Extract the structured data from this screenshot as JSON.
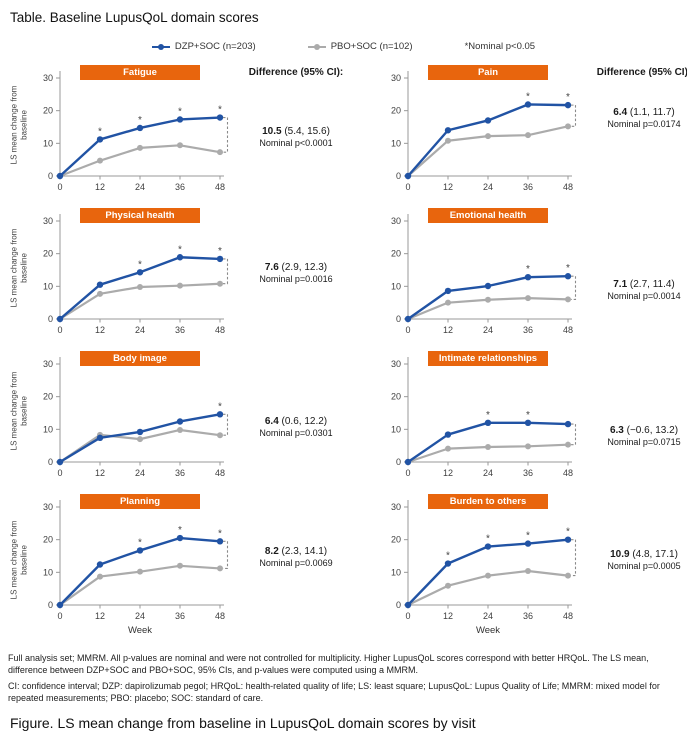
{
  "title": "Table. Baseline LupusQoL domain scores",
  "legend_note": "*Nominal p<0.05",
  "diff_header": "Difference (95% CI):",
  "colors": {
    "dzp": "#2153A4",
    "pbo": "#ABABAB",
    "header_bg": "#E8650D",
    "header_text": "#FFFFFF",
    "axis": "#999999",
    "tick_text": "#404040",
    "bracket": "#8A8A8A"
  },
  "chart_data": {
    "type": "line",
    "x": [
      0,
      12,
      24,
      36,
      48
    ],
    "xlabel": "Week",
    "ylabel": "LS mean change from\nbaseline",
    "ylim": [
      0,
      30
    ],
    "yticks": [
      0,
      10,
      20,
      30
    ],
    "grid": false,
    "legend_position": "top",
    "series": [
      {
        "name": "DZP+SOC (n=203)",
        "color_key": "dzp"
      },
      {
        "name": "PBO+SOC (n=102)",
        "color_key": "pbo"
      }
    ],
    "panels": [
      {
        "title": "Fatigue",
        "dzp": [
          0,
          11.2,
          14.7,
          17.3,
          17.9
        ],
        "pbo": [
          0,
          4.7,
          8.6,
          9.4,
          7.3
        ],
        "asterisk_weeks": [
          12,
          24,
          36,
          48
        ],
        "difference": "10.5",
        "ci": "(5.4, 15.6)",
        "p": "Nominal p<0.0001",
        "ylabel_shown": true,
        "xlabel_shown": false,
        "diff_header_shown": true
      },
      {
        "title": "Pain",
        "dzp": [
          0,
          14.0,
          17.0,
          21.9,
          21.7
        ],
        "pbo": [
          0,
          10.8,
          12.2,
          12.5,
          15.2
        ],
        "asterisk_weeks": [
          36,
          48
        ],
        "difference": "6.4",
        "ci": "(1.1, 11.7)",
        "p": "Nominal p=0.0174",
        "ylabel_shown": false,
        "xlabel_shown": false,
        "diff_header_shown": true
      },
      {
        "title": "Physical health",
        "dzp": [
          0,
          10.5,
          14.3,
          18.9,
          18.4
        ],
        "pbo": [
          0,
          7.7,
          9.8,
          10.2,
          10.8
        ],
        "asterisk_weeks": [
          24,
          36,
          48
        ],
        "difference": "7.6",
        "ci": "(2.9, 12.3)",
        "p": "Nominal p=0.0016",
        "ylabel_shown": true,
        "xlabel_shown": false,
        "diff_header_shown": false
      },
      {
        "title": "Emotional health",
        "dzp": [
          0,
          8.6,
          10.1,
          12.8,
          13.1
        ],
        "pbo": [
          0,
          5.0,
          5.9,
          6.4,
          6.0
        ],
        "asterisk_weeks": [
          36,
          48
        ],
        "difference": "7.1",
        "ci": "(2.7, 11.4)",
        "p": "Nominal p=0.0014",
        "ylabel_shown": false,
        "xlabel_shown": false,
        "diff_header_shown": false
      },
      {
        "title": "Body image",
        "dzp": [
          0,
          7.4,
          9.2,
          12.4,
          14.6
        ],
        "pbo": [
          0,
          8.3,
          7.0,
          9.8,
          8.2
        ],
        "asterisk_weeks": [
          48
        ],
        "difference": "6.4",
        "ci": "(0.6, 12.2)",
        "p": "Nominal p=0.0301",
        "ylabel_shown": true,
        "xlabel_shown": false,
        "diff_header_shown": false
      },
      {
        "title": "Intimate relationships",
        "dzp": [
          0,
          8.4,
          12.0,
          12.0,
          11.6
        ],
        "pbo": [
          0,
          4.1,
          4.6,
          4.8,
          5.3
        ],
        "asterisk_weeks": [
          24,
          36
        ],
        "difference": "6.3",
        "ci": "(−0.6, 13.2)",
        "p": "Nominal p=0.0715",
        "ylabel_shown": false,
        "xlabel_shown": false,
        "diff_header_shown": false
      },
      {
        "title": "Planning",
        "dzp": [
          0,
          12.4,
          16.7,
          20.5,
          19.5
        ],
        "pbo": [
          0,
          8.7,
          10.2,
          12.0,
          11.2
        ],
        "asterisk_weeks": [
          24,
          36,
          48
        ],
        "difference": "8.2",
        "ci": "(2.3, 14.1)",
        "p": "Nominal p=0.0069",
        "ylabel_shown": true,
        "xlabel_shown": true,
        "diff_header_shown": false
      },
      {
        "title": "Burden to others",
        "dzp": [
          0,
          12.7,
          17.9,
          18.8,
          20.0
        ],
        "pbo": [
          0,
          5.9,
          9.0,
          10.4,
          9.0
        ],
        "asterisk_weeks": [
          12,
          24,
          36,
          48
        ],
        "difference": "10.9",
        "ci": "(4.8, 17.1)",
        "p": "Nominal p=0.0005",
        "ylabel_shown": false,
        "xlabel_shown": true,
        "diff_header_shown": false
      }
    ]
  },
  "footnotes": [
    "Full analysis set; MMRM. All p-values are nominal and were not controlled for multiplicity. Higher LupusQoL scores correspond with better HRQoL. The LS mean, difference between DZP+SOC and PBO+SOC, 95% CIs, and p-values were computed using a MMRM.",
    "CI: confidence interval; DZP: dapirolizumab pegol; HRQoL: health-related quality of life; LS: least square; LupusQoL: Lupus Quality of Life; MMRM: mixed model for repeated measurements; PBO: placebo; SOC: standard of care."
  ],
  "figure_caption": "Figure. LS mean change from baseline in LupusQoL domain scores by visit"
}
